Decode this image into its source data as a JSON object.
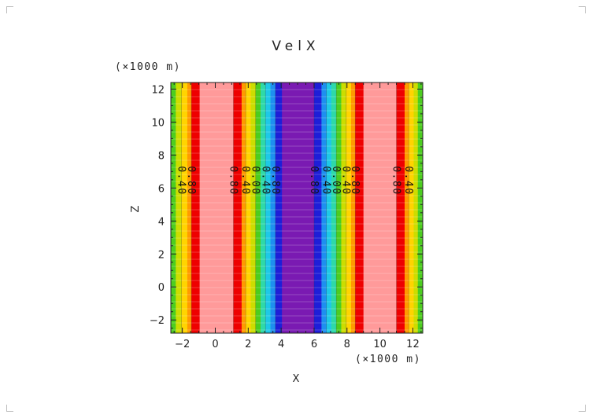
{
  "chart_data": {
    "type": "heatmap",
    "title": "VelX",
    "xlabel": "X",
    "ylabel": "Z",
    "x_unit": "(×1000 m)",
    "y_unit": "(×1000 m)",
    "xlim": [
      -2.7,
      12.6
    ],
    "ylim": [
      -2.8,
      12.4
    ],
    "x_ticks": [
      -2,
      0,
      2,
      4,
      6,
      8,
      10,
      12
    ],
    "y_ticks": [
      -2,
      0,
      2,
      4,
      6,
      8,
      10,
      12
    ],
    "x_tick_labels": [
      "−2",
      "0",
      "2",
      "4",
      "6",
      "8",
      "10",
      "12"
    ],
    "y_tick_labels": [
      "−2",
      "0",
      "2",
      "4",
      "6",
      "8",
      "10",
      "12"
    ],
    "bands": [
      {
        "x0": -2.7,
        "x1": -2.4,
        "color": "#4ccd1f"
      },
      {
        "x0": -2.4,
        "x1": -2.05,
        "color": "#ccdd00"
      },
      {
        "x0": -2.05,
        "x1": -1.7,
        "color": "#ffd400"
      },
      {
        "x0": -1.7,
        "x1": -1.45,
        "color": "#ff9a00"
      },
      {
        "x0": -1.45,
        "x1": -0.95,
        "color": "#ee0000"
      },
      {
        "x0": -0.95,
        "x1": 1.1,
        "color": "#ff9a9a"
      },
      {
        "x0": 1.1,
        "x1": 1.6,
        "color": "#ee0000"
      },
      {
        "x0": 1.6,
        "x1": 1.85,
        "color": "#ff9a00"
      },
      {
        "x0": 1.85,
        "x1": 2.15,
        "color": "#ffd400"
      },
      {
        "x0": 2.15,
        "x1": 2.45,
        "color": "#ccdd00"
      },
      {
        "x0": 2.45,
        "x1": 2.75,
        "color": "#4ccd1f"
      },
      {
        "x0": 2.75,
        "x1": 3.05,
        "color": "#2ed9a8"
      },
      {
        "x0": 3.05,
        "x1": 3.35,
        "color": "#1ec8e6"
      },
      {
        "x0": 3.35,
        "x1": 3.65,
        "color": "#1e8fef"
      },
      {
        "x0": 3.65,
        "x1": 4.05,
        "color": "#1e1ed8"
      },
      {
        "x0": 4.05,
        "x1": 6.0,
        "color": "#7a1ab2"
      },
      {
        "x0": 6.0,
        "x1": 6.45,
        "color": "#1e1ed8"
      },
      {
        "x0": 6.45,
        "x1": 6.75,
        "color": "#1e8fef"
      },
      {
        "x0": 6.75,
        "x1": 7.05,
        "color": "#1ec8e6"
      },
      {
        "x0": 7.05,
        "x1": 7.35,
        "color": "#2ed9a8"
      },
      {
        "x0": 7.35,
        "x1": 7.65,
        "color": "#4ccd1f"
      },
      {
        "x0": 7.65,
        "x1": 7.95,
        "color": "#ccdd00"
      },
      {
        "x0": 7.95,
        "x1": 8.25,
        "color": "#ffd400"
      },
      {
        "x0": 8.25,
        "x1": 8.5,
        "color": "#ff9a00"
      },
      {
        "x0": 8.5,
        "x1": 9.0,
        "color": "#ee0000"
      },
      {
        "x0": 9.0,
        "x1": 11.0,
        "color": "#ff9a9a"
      },
      {
        "x0": 11.0,
        "x1": 11.5,
        "color": "#ee0000"
      },
      {
        "x0": 11.5,
        "x1": 11.75,
        "color": "#ff9a00"
      },
      {
        "x0": 11.75,
        "x1": 12.05,
        "color": "#ffd400"
      },
      {
        "x0": 12.05,
        "x1": 12.3,
        "color": "#ccdd00"
      },
      {
        "x0": 12.3,
        "x1": 12.6,
        "color": "#4ccd1f"
      }
    ],
    "contour_lines": [
      {
        "x": -2.05,
        "label": "0.40"
      },
      {
        "x": -1.45,
        "label": "0.80"
      },
      {
        "x": 1.1,
        "label": "0.80"
      },
      {
        "x": 1.85,
        "label": "0.40"
      },
      {
        "x": 2.45,
        "label": "0.00"
      },
      {
        "x": 3.05,
        "label": "0.40"
      },
      {
        "x": 3.65,
        "label": "0.80"
      },
      {
        "x": 6.0,
        "label": "0.80"
      },
      {
        "x": 6.75,
        "label": "0.40"
      },
      {
        "x": 7.35,
        "label": "0.00"
      },
      {
        "x": 7.95,
        "label": "0.40"
      },
      {
        "x": 8.5,
        "label": "0.80"
      },
      {
        "x": 11.0,
        "label": "0.80"
      },
      {
        "x": 11.75,
        "label": "0.40"
      }
    ],
    "contour_label_z": 6.45
  }
}
